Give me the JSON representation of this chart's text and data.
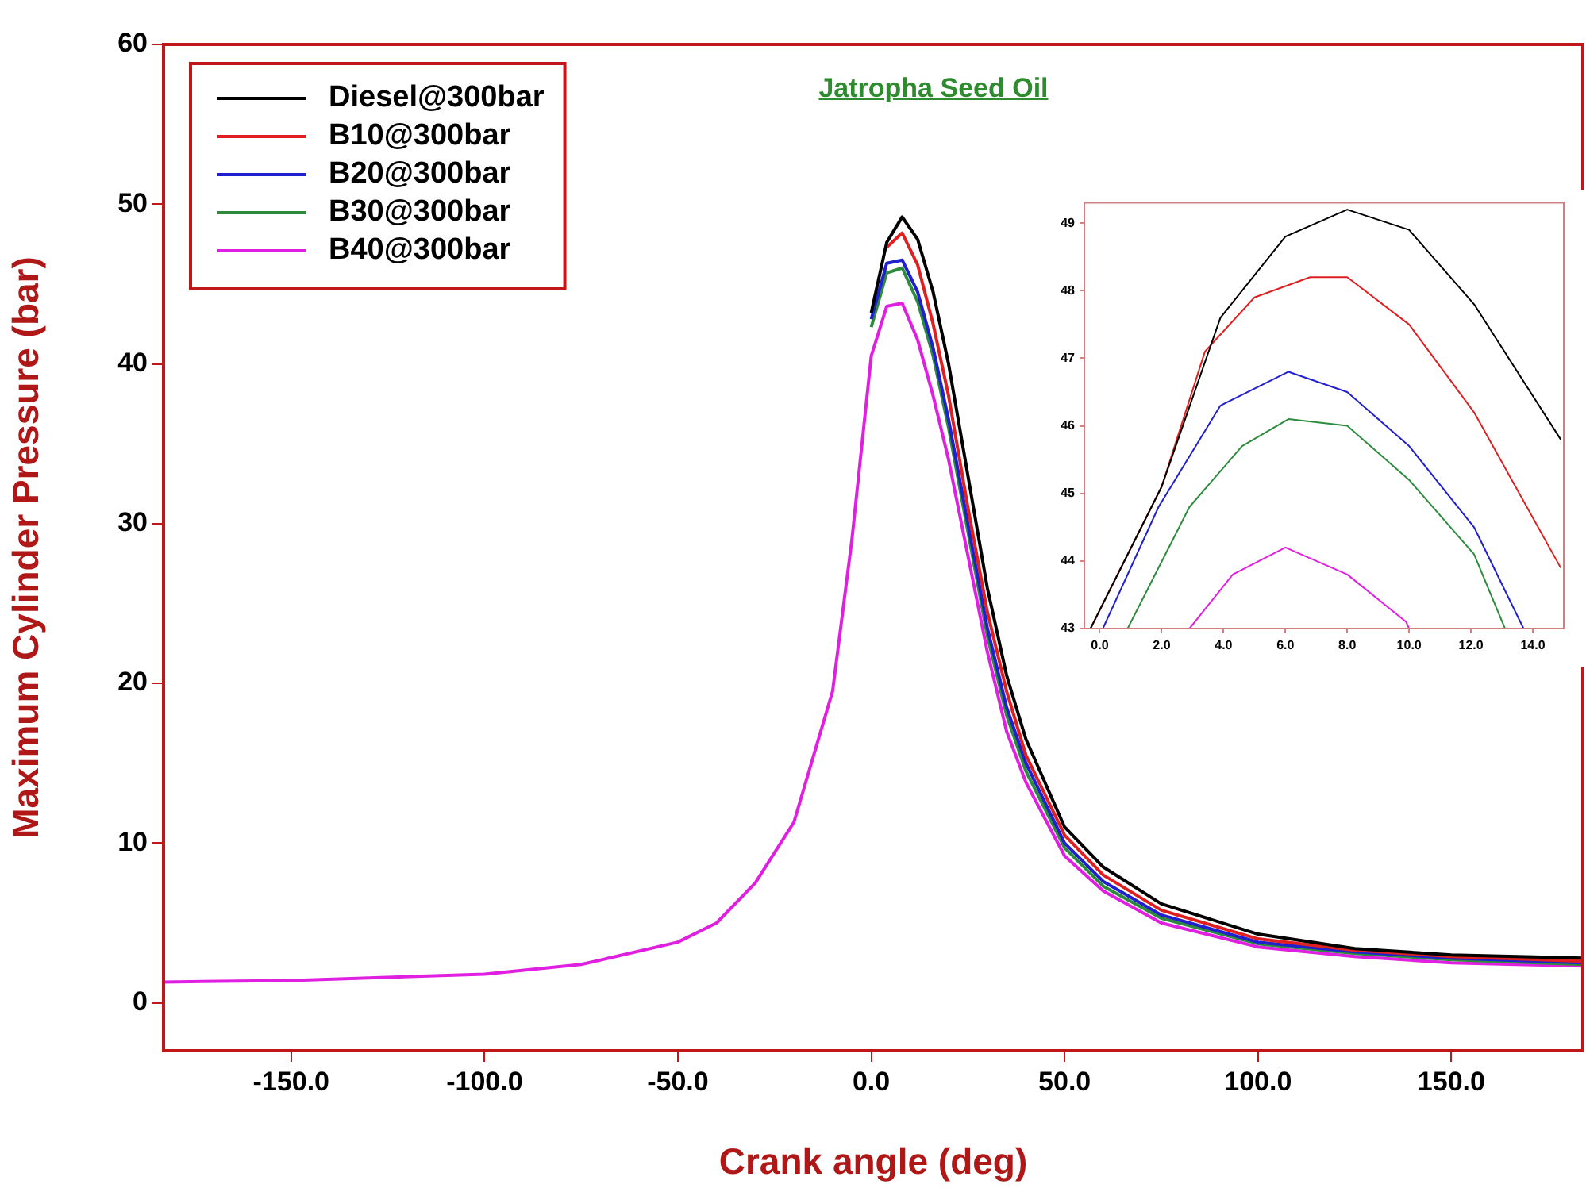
{
  "chart_data": [
    {
      "type": "line",
      "title": "Jatropha Seed Oil",
      "xlabel": "Crank angle (deg)",
      "ylabel": "Maximum Cylinder Pressure (bar)",
      "legend": "top left",
      "grid": false,
      "marker": "none",
      "line_style": "solid",
      "x": [
        -183,
        -150,
        -100,
        -75,
        -50,
        -40,
        -30,
        -20,
        -10,
        -5,
        0,
        4,
        8,
        12,
        16,
        20,
        25,
        30,
        35,
        40,
        50,
        60,
        75,
        100,
        125,
        150,
        184
      ],
      "xlim": [
        -183,
        184
      ],
      "ylim": [
        -3,
        60
      ],
      "xticks": [
        {
          "value": -150,
          "label": "-150.0"
        },
        {
          "value": -100,
          "label": "-100.0"
        },
        {
          "value": -50,
          "label": "-50.0"
        },
        {
          "value": 0,
          "label": "0.0"
        },
        {
          "value": 50,
          "label": "50.0"
        },
        {
          "value": 100,
          "label": "100.0"
        },
        {
          "value": 150,
          "label": "150.0"
        }
      ],
      "yticks": [
        0,
        10,
        20,
        30,
        40,
        50,
        60
      ],
      "series": [
        {
          "name": "Diesel@300bar",
          "color": "#000000",
          "values": [
            null,
            null,
            null,
            null,
            null,
            null,
            null,
            null,
            null,
            null,
            43.2,
            47.6,
            49.2,
            47.8,
            44.5,
            40,
            33,
            26,
            20.5,
            16.5,
            11,
            8.5,
            6.2,
            4.3,
            3.4,
            3,
            2.8
          ]
        },
        {
          "name": "B10@300bar",
          "color": "#e02020",
          "values": [
            null,
            null,
            null,
            null,
            null,
            null,
            null,
            null,
            null,
            null,
            null,
            47.3,
            48.2,
            46.2,
            42.5,
            38,
            31,
            24.5,
            19.5,
            15.5,
            10.5,
            8,
            5.8,
            4,
            3.3,
            2.9,
            2.6
          ]
        },
        {
          "name": "B20@300bar",
          "color": "#2020d0",
          "values": [
            null,
            null,
            null,
            null,
            null,
            null,
            null,
            null,
            null,
            null,
            42.8,
            46.3,
            46.5,
            44.5,
            41,
            36.5,
            30,
            23.5,
            18.5,
            15,
            10,
            7.6,
            5.5,
            3.8,
            3.2,
            2.8,
            2.5
          ]
        },
        {
          "name": "B30@300bar",
          "color": "#2e8b3e",
          "values": [
            null,
            null,
            null,
            null,
            null,
            null,
            null,
            null,
            null,
            null,
            42.3,
            45.7,
            46,
            43.9,
            40.5,
            36,
            29.5,
            23,
            18,
            14.5,
            9.7,
            7.3,
            5.3,
            3.7,
            3.1,
            2.7,
            2.4
          ]
        },
        {
          "name": "B40@300bar",
          "color": "#e020e0",
          "values": [
            1.3,
            1.4,
            1.8,
            2.4,
            3.8,
            5,
            7.5,
            11.3,
            19.5,
            29,
            40.5,
            43.6,
            43.8,
            41.5,
            38,
            34,
            28,
            22,
            17,
            13.8,
            9.2,
            7,
            5,
            3.5,
            2.9,
            2.5,
            2.3
          ]
        }
      ]
    },
    {
      "type": "line",
      "grid": false,
      "marker": "none",
      "line_style": "solid",
      "legend": false,
      "xlim": [
        -0.5,
        15
      ],
      "ylim": [
        43,
        49.3
      ],
      "xticks": [
        {
          "value": 0,
          "label": "0.0"
        },
        {
          "value": 2,
          "label": "2.0"
        },
        {
          "value": 4,
          "label": "4.0"
        },
        {
          "value": 6,
          "label": "6.0"
        },
        {
          "value": 8,
          "label": "8.0"
        },
        {
          "value": 10,
          "label": "10.0"
        },
        {
          "value": 12,
          "label": "12.0"
        },
        {
          "value": 14,
          "label": "14.0"
        }
      ],
      "yticks": [
        43,
        44,
        45,
        46,
        47,
        48,
        49
      ],
      "series": [
        {
          "color": "#000000",
          "x": [
            -0.3,
            2,
            3.9,
            6,
            8,
            10,
            12.1,
            14.9
          ],
          "values": [
            43,
            45.1,
            47.6,
            48.8,
            49.2,
            48.9,
            47.8,
            45.8
          ]
        },
        {
          "color": "#e02020",
          "x": [
            -0.3,
            2,
            3.4,
            5,
            6.8,
            8,
            10,
            12.1,
            14.9
          ],
          "values": [
            43,
            45.1,
            47.1,
            47.9,
            48.2,
            48.2,
            47.5,
            46.2,
            43.9
          ]
        },
        {
          "color": "#2020d0",
          "x": [
            0.1,
            1.9,
            3.9,
            6.1,
            8,
            10,
            12.1,
            13.7
          ],
          "values": [
            43,
            44.8,
            46.3,
            46.8,
            46.5,
            45.7,
            44.5,
            43
          ]
        },
        {
          "color": "#2e8b3e",
          "x": [
            0.9,
            2.9,
            4.6,
            6.1,
            8,
            10,
            12.1,
            13.1
          ],
          "values": [
            43,
            44.8,
            45.7,
            46.1,
            46,
            45.2,
            44.1,
            43
          ]
        },
        {
          "color": "#e020e0",
          "x": [
            2.9,
            4.3,
            6,
            8,
            9.9,
            10
          ],
          "values": [
            43,
            43.8,
            44.2,
            43.8,
            43.1,
            43
          ]
        }
      ]
    }
  ]
}
